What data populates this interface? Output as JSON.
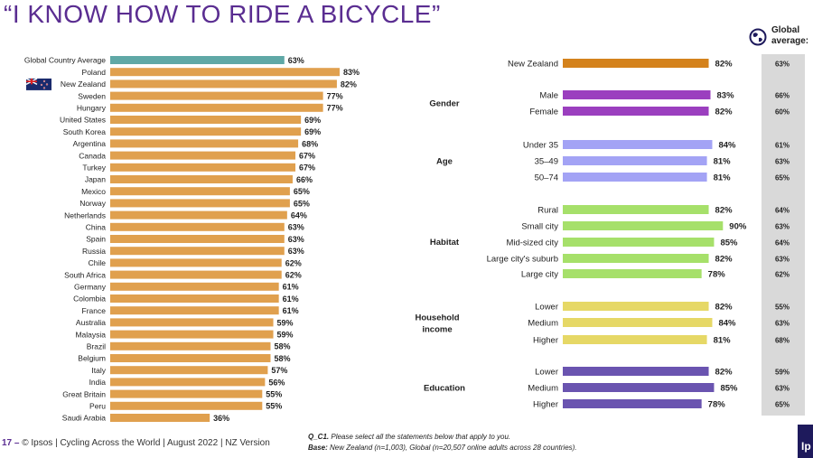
{
  "title": "“I KNOW HOW TO RIDE A BICYCLE”",
  "global_header": [
    "Global",
    "average:"
  ],
  "footer": {
    "page_number": "17 –",
    "text": "© Ipsos | Cycling Across the World | August 2022 | NZ Version"
  },
  "footnote": {
    "question_label": "Q_C1.",
    "question_text": "Please select all the statements below that apply to you.",
    "base_label": "Base:",
    "base_text": "New Zealand (n=1,003), Global (n=20,507 online adults across 28 countries)."
  },
  "logo_text": "Ip",
  "colors": {
    "title": "#5a2d91",
    "global_avg_bar": "#5fa8a6",
    "country_bar": "#e0a04e",
    "nz_total_bar": "#d4821c",
    "gender_bar": "#9b3fbf",
    "age_bar": "#a3a3f5",
    "habitat_bar": "#a6e06a",
    "income_bar": "#e6d866",
    "education_bar": "#6a54b0",
    "global_column_bg": "#d9d9d9"
  },
  "icons": [
    "nz-flag-icon",
    "globe-icon"
  ],
  "chart_data": [
    {
      "type": "bar",
      "orientation": "horizontal",
      "categories": [
        "Global Country Average",
        "Poland",
        "New Zealand",
        "Sweden",
        "Hungary",
        "United States",
        "South Korea",
        "Argentina",
        "Canada",
        "Turkey",
        "Japan",
        "Mexico",
        "Norway",
        "Netherlands",
        "China",
        "Spain",
        "Russia",
        "Chile",
        "South Africa",
        "Germany",
        "Colombia",
        "France",
        "Australia",
        "Malaysia",
        "Brazil",
        "Belgium",
        "Italy",
        "India",
        "Great Britain",
        "Peru",
        "Saudi Arabia"
      ],
      "values": [
        63,
        83,
        82,
        77,
        77,
        69,
        69,
        68,
        67,
        67,
        66,
        65,
        65,
        64,
        63,
        63,
        63,
        62,
        62,
        61,
        61,
        61,
        59,
        59,
        58,
        58,
        57,
        56,
        55,
        55,
        36
      ],
      "value_labels": [
        "63%",
        "83%",
        "82%",
        "77%",
        "77%",
        "69%",
        "69%",
        "68%",
        "67%",
        "67%",
        "66%",
        "65%",
        "65%",
        "64%",
        "63%",
        "63%",
        "63%",
        "62%",
        "62%",
        "61%",
        "61%",
        "61%",
        "59%",
        "59%",
        "58%",
        "58%",
        "57%",
        "56%",
        "55%",
        "55%",
        "36%"
      ],
      "xlim": [
        0,
        100
      ]
    },
    {
      "type": "bar",
      "orientation": "horizontal",
      "groups": [
        {
          "label": "",
          "color_key": "nz_total_bar",
          "items": [
            {
              "label": "New Zealand",
              "value": 82,
              "value_label": "82%",
              "global_label": "63%"
            }
          ]
        },
        {
          "label": "Gender",
          "color_key": "gender_bar",
          "items": [
            {
              "label": "Male",
              "value": 83,
              "value_label": "83%",
              "global_label": "66%"
            },
            {
              "label": "Female",
              "value": 82,
              "value_label": "82%",
              "global_label": "60%"
            }
          ]
        },
        {
          "label": "Age",
          "color_key": "age_bar",
          "items": [
            {
              "label": "Under 35",
              "value": 84,
              "value_label": "84%",
              "global_label": "61%"
            },
            {
              "label": "35–49",
              "value": 81,
              "value_label": "81%",
              "global_label": "63%"
            },
            {
              "label": "50–74",
              "value": 81,
              "value_label": "81%",
              "global_label": "65%"
            }
          ]
        },
        {
          "label": "Habitat",
          "color_key": "habitat_bar",
          "items": [
            {
              "label": "Rural",
              "value": 82,
              "value_label": "82%",
              "global_label": "64%"
            },
            {
              "label": "Small city",
              "value": 90,
              "value_label": "90%",
              "global_label": "63%"
            },
            {
              "label": "Mid-sized city",
              "value": 85,
              "value_label": "85%",
              "global_label": "64%"
            },
            {
              "label": "Large city's suburb",
              "value": 82,
              "value_label": "82%",
              "global_label": "63%"
            },
            {
              "label": "Large city",
              "value": 78,
              "value_label": "78%",
              "global_label": "62%"
            }
          ]
        },
        {
          "label": "Household income",
          "label_lines": [
            "Household",
            "income"
          ],
          "color_key": "income_bar",
          "items": [
            {
              "label": "Lower",
              "value": 82,
              "value_label": "82%",
              "global_label": "55%"
            },
            {
              "label": "Medium",
              "value": 84,
              "value_label": "84%",
              "global_label": "63%"
            },
            {
              "label": "Higher",
              "value": 81,
              "value_label": "81%",
              "global_label": "68%"
            }
          ]
        },
        {
          "label": "Education",
          "color_key": "education_bar",
          "items": [
            {
              "label": "Lower",
              "value": 82,
              "value_label": "82%",
              "global_label": "59%"
            },
            {
              "label": "Medium",
              "value": 85,
              "value_label": "85%",
              "global_label": "63%"
            },
            {
              "label": "Higher",
              "value": 78,
              "value_label": "78%",
              "global_label": "65%"
            }
          ]
        }
      ],
      "xlim": [
        0,
        100
      ]
    }
  ]
}
